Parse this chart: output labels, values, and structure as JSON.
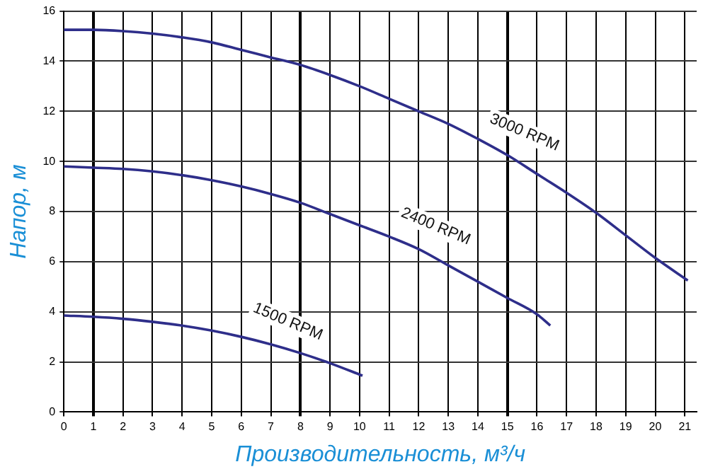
{
  "chart_data": {
    "type": "line",
    "xlabel": "Производительность, м³/ч",
    "ylabel": "Напор, м",
    "xlim": [
      0,
      21.4
    ],
    "xticks": [
      0,
      1,
      2,
      3,
      4,
      5,
      6,
      7,
      8,
      9,
      10,
      11,
      12,
      13,
      14,
      15,
      16,
      17,
      18,
      19,
      20,
      21
    ],
    "ylim": [
      0,
      16
    ],
    "yticks": [
      0,
      2,
      4,
      6,
      8,
      10,
      12,
      14,
      16
    ],
    "grid": true,
    "legend": false,
    "marker": "none",
    "line_style": "solid",
    "series": [
      {
        "name": "3000 RPM",
        "color": "#2e2e8a",
        "x": [
          0,
          1,
          2,
          3,
          4,
          5,
          6,
          7,
          8,
          9,
          10,
          11,
          12,
          13,
          14,
          15,
          16,
          17,
          18,
          19,
          20,
          21.1
        ],
        "values": [
          15.25,
          15.25,
          15.2,
          15.1,
          14.95,
          14.75,
          14.45,
          14.15,
          13.85,
          13.45,
          13.0,
          12.5,
          12.0,
          11.5,
          10.9,
          10.25,
          9.5,
          8.75,
          7.95,
          7.05,
          6.15,
          5.25
        ]
      },
      {
        "name": "2400 RPM",
        "color": "#2e2e8a",
        "x": [
          0,
          1,
          2,
          3,
          4,
          5,
          6,
          7,
          8,
          9,
          10,
          11,
          12,
          13,
          14,
          15,
          16,
          16.45
        ],
        "values": [
          9.8,
          9.75,
          9.7,
          9.6,
          9.45,
          9.25,
          9.0,
          8.7,
          8.35,
          7.9,
          7.45,
          7.0,
          6.5,
          5.85,
          5.2,
          4.55,
          3.9,
          3.45
        ]
      },
      {
        "name": "1500 RPM",
        "color": "#2e2e8a",
        "x": [
          0,
          1,
          2,
          3,
          4,
          5,
          6,
          7,
          8,
          9,
          10.1
        ],
        "values": [
          3.85,
          3.8,
          3.72,
          3.6,
          3.45,
          3.25,
          3.0,
          2.7,
          2.35,
          1.95,
          1.45
        ]
      }
    ]
  }
}
